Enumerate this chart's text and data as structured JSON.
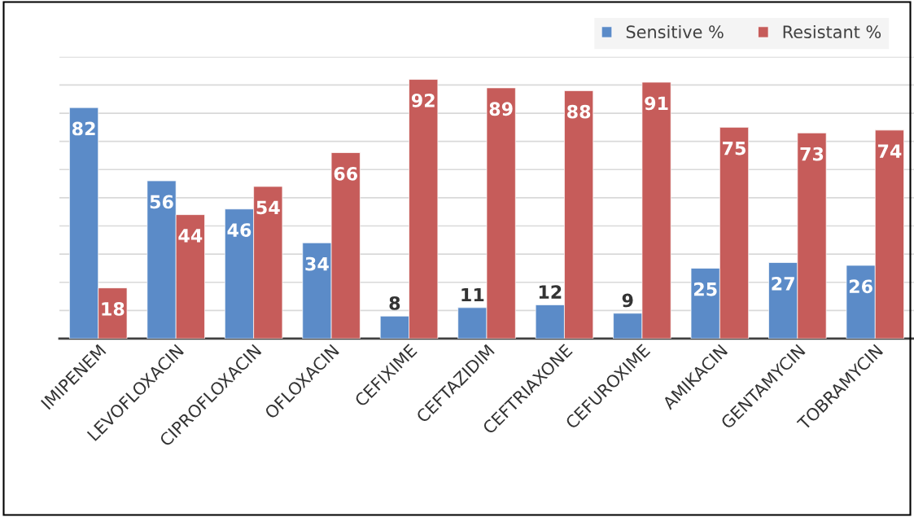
{
  "chart_data": {
    "type": "bar",
    "categories": [
      "IMIPENEM",
      "LEVOFLOXACIN",
      "CIPROFLOXACIN",
      "OFLOXACIN",
      "CEFIXIME",
      "CEFTAZIDIM",
      "CEFTRIAXONE",
      "CEFUROXIME",
      "AMIKACIN",
      "GENTAMYCIN",
      "TOBRAMYCIN"
    ],
    "series": [
      {
        "name": "Sensitive %",
        "color": "#5b8bc8",
        "values": [
          82,
          56,
          46,
          34,
          8,
          11,
          12,
          9,
          25,
          27,
          26
        ]
      },
      {
        "name": "Resistant %",
        "color": "#c65c5a",
        "values": [
          18,
          44,
          54,
          66,
          92,
          89,
          88,
          91,
          75,
          73,
          74
        ]
      }
    ],
    "ylim": [
      0,
      100
    ],
    "yticks": [
      {
        "value": 0,
        "label": null
      },
      {
        "value": 10,
        "label": null
      },
      {
        "value": 20,
        "label": null
      },
      {
        "value": 30,
        "label": null
      },
      {
        "value": 40,
        "label": null
      },
      {
        "value": 50,
        "label": null
      },
      {
        "value": 60,
        "label": null
      },
      {
        "value": 70,
        "label": null
      },
      {
        "value": 80,
        "label": null
      },
      {
        "value": 90,
        "label": null
      },
      {
        "value": 100,
        "label": null
      }
    ],
    "tick_labels": "x",
    "grid": "y",
    "legend": "top right",
    "data_labels": true
  }
}
